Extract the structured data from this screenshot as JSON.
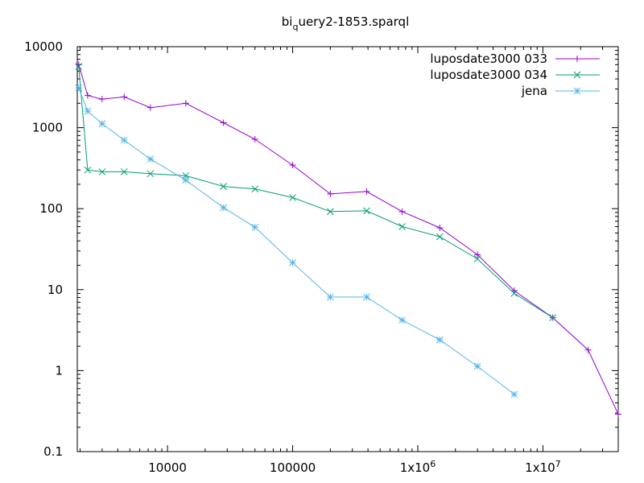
{
  "chart_data": {
    "type": "line",
    "title": {
      "prefix": "bi",
      "subscript": "q",
      "suffix": "uery2-1853.sparql"
    },
    "xlabel": "",
    "ylabel": "",
    "x_scale": "log",
    "y_scale": "log",
    "xlim": [
      1900,
      40000000
    ],
    "ylim": [
      0.1,
      10000
    ],
    "grid": false,
    "legend_position": "top-right",
    "x_ticks": [
      {
        "value": 10000,
        "label": "10000"
      },
      {
        "value": 100000,
        "label": "100000"
      },
      {
        "value": 1000000,
        "label": "1x10",
        "exp": "6"
      },
      {
        "value": 10000000,
        "label": "1x10",
        "exp": "7"
      }
    ],
    "y_ticks": [
      {
        "value": 0.1,
        "label": "0.1"
      },
      {
        "value": 1,
        "label": "1"
      },
      {
        "value": 10,
        "label": "10"
      },
      {
        "value": 100,
        "label": "100"
      },
      {
        "value": 1000,
        "label": "1000"
      },
      {
        "value": 10000,
        "label": "10000"
      }
    ],
    "series": [
      {
        "name": "luposdate3000 033",
        "color": "#9400d3",
        "marker": "plus",
        "points": [
          [
            1950,
            6000
          ],
          [
            2300,
            2500
          ],
          [
            3000,
            2250
          ],
          [
            4500,
            2400
          ],
          [
            7300,
            1770
          ],
          [
            14000,
            2000
          ],
          [
            28000,
            1150
          ],
          [
            50000,
            720
          ],
          [
            100000,
            345
          ],
          [
            200000,
            152
          ],
          [
            390000,
            163
          ],
          [
            750000,
            92
          ],
          [
            1500000,
            58
          ],
          [
            3000000,
            27
          ],
          [
            5900000,
            9.7
          ],
          [
            12000000,
            4.5
          ],
          [
            23000000,
            1.8
          ],
          [
            40000000,
            0.29
          ]
        ]
      },
      {
        "name": "luposdate3000 034",
        "color": "#009e73",
        "marker": "cross",
        "points": [
          [
            1950,
            5700
          ],
          [
            2300,
            300
          ],
          [
            3000,
            285
          ],
          [
            4500,
            285
          ],
          [
            7300,
            270
          ],
          [
            14000,
            255
          ],
          [
            28000,
            188
          ],
          [
            50000,
            175
          ],
          [
            100000,
            137
          ],
          [
            200000,
            92
          ],
          [
            390000,
            94
          ],
          [
            750000,
            60
          ],
          [
            1500000,
            45
          ],
          [
            3000000,
            24
          ],
          [
            5900000,
            9
          ],
          [
            12000000,
            4.5
          ]
        ]
      },
      {
        "name": "jena",
        "color": "#56b4e9",
        "marker": "star",
        "points": [
          [
            1950,
            3100
          ],
          [
            2300,
            1600
          ],
          [
            3000,
            1120
          ],
          [
            4500,
            700
          ],
          [
            7300,
            410
          ],
          [
            14000,
            225
          ],
          [
            28000,
            103
          ],
          [
            50000,
            59
          ],
          [
            100000,
            21.5
          ],
          [
            200000,
            8.1
          ],
          [
            390000,
            8.1
          ],
          [
            750000,
            4.2
          ],
          [
            1500000,
            2.4
          ],
          [
            3000000,
            1.13
          ],
          [
            5900000,
            0.51
          ]
        ]
      }
    ]
  }
}
